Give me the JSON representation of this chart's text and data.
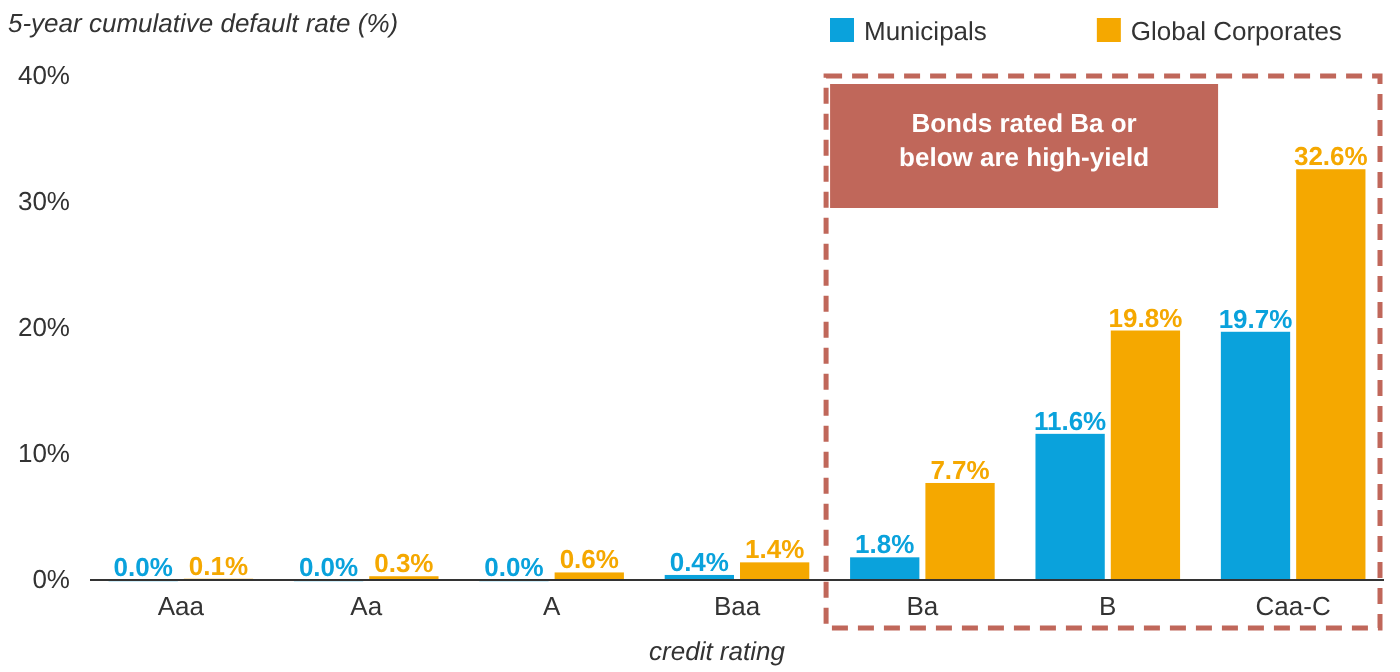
{
  "chart_data": {
    "type": "bar",
    "title": "5-year cumulative default rate (%)",
    "xlabel": "credit rating",
    "categories": [
      "Aaa",
      "Aa",
      "A",
      "Baa",
      "Ba",
      "B",
      "Caa-C"
    ],
    "series": [
      {
        "name": "Municipals",
        "color": "#0aa2dc",
        "values": [
          0.0,
          0.0,
          0.0,
          0.4,
          1.8,
          11.6,
          19.7
        ],
        "value_labels": [
          "0.0%",
          "0.0%",
          "0.0%",
          "0.4%",
          "1.8%",
          "11.6%",
          "19.7%"
        ]
      },
      {
        "name": "Global Corporates",
        "color": "#f5a800",
        "values": [
          0.1,
          0.3,
          0.6,
          1.4,
          7.7,
          19.8,
          32.6
        ],
        "value_labels": [
          "0.1%",
          "0.3%",
          "0.6%",
          "1.4%",
          "7.7%",
          "19.8%",
          "32.6%"
        ]
      }
    ],
    "ylim": [
      0,
      40
    ],
    "yticks": [
      {
        "value": 0,
        "label": "0%"
      },
      {
        "value": 10,
        "label": "10%"
      },
      {
        "value": 20,
        "label": "20%"
      },
      {
        "value": 30,
        "label": "30%"
      },
      {
        "value": 40,
        "label": "40%"
      }
    ],
    "grid": false,
    "legend": "top right",
    "annotations": [
      "Bonds rated Ba or below are high-yield"
    ]
  }
}
